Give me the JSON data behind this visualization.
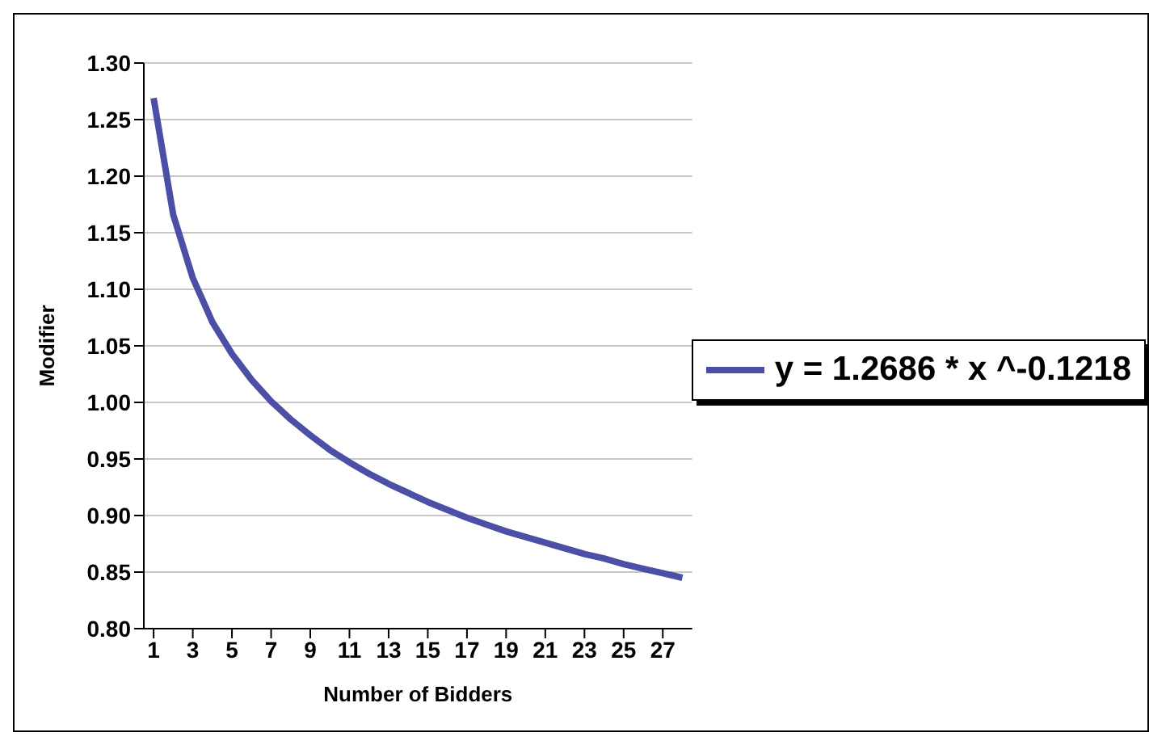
{
  "chart_data": {
    "type": "line",
    "xlabel": "Number of Bidders",
    "ylabel": "Modifier",
    "x": [
      1,
      2,
      3,
      4,
      5,
      6,
      7,
      8,
      9,
      10,
      11,
      12,
      13,
      14,
      15,
      16,
      17,
      18,
      19,
      20,
      21,
      22,
      23,
      24,
      25,
      26,
      27,
      28
    ],
    "series": [
      {
        "name": "y = 1.2686 * x ^-0.1218",
        "color": "#4b4fa6",
        "values": [
          1.269,
          1.166,
          1.11,
          1.071,
          1.043,
          1.02,
          1.001,
          0.985,
          0.971,
          0.958,
          0.947,
          0.937,
          0.928,
          0.92,
          0.912,
          0.905,
          0.898,
          0.892,
          0.886,
          0.881,
          0.876,
          0.871,
          0.866,
          0.862,
          0.857,
          0.853,
          0.849,
          0.845
        ]
      }
    ],
    "xlim": [
      0.5,
      28.5
    ],
    "xticks": [
      1,
      3,
      5,
      7,
      9,
      11,
      13,
      15,
      17,
      19,
      21,
      23,
      25,
      27
    ],
    "ylim": [
      0.8,
      1.3
    ],
    "yticks": [
      {
        "value": 0.8,
        "label": "0.80"
      },
      {
        "value": 0.85,
        "label": "0.85"
      },
      {
        "value": 0.9,
        "label": "0.90"
      },
      {
        "value": 0.95,
        "label": "0.95"
      },
      {
        "value": 1.0,
        "label": "1.00"
      },
      {
        "value": 1.05,
        "label": "1.05"
      },
      {
        "value": 1.1,
        "label": "1.10"
      },
      {
        "value": 1.15,
        "label": "1.15"
      },
      {
        "value": 1.2,
        "label": "1.20"
      },
      {
        "value": 1.25,
        "label": "1.25"
      },
      {
        "value": 1.3,
        "label": "1.30"
      }
    ],
    "grid": "y",
    "legend": "right",
    "marker": "none",
    "line_style": "solid"
  }
}
